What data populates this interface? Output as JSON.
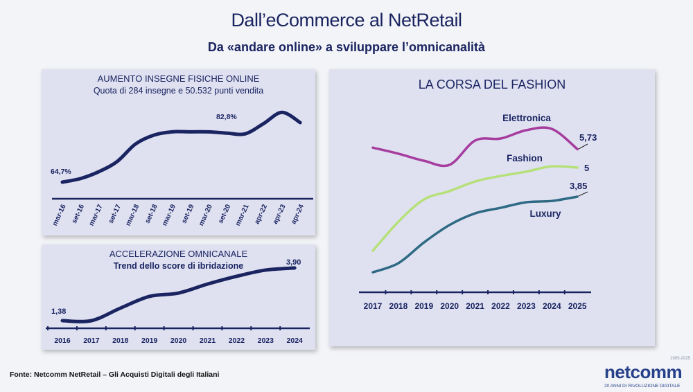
{
  "header": {
    "title": "Dall’eCommerce al NetRetail",
    "subtitle": "Da «andare online» a sviluppare l’omnicanalità"
  },
  "colors": {
    "navy": "#1a2460",
    "elettronica": "#a63d9e",
    "fashion": "#b6e07a",
    "luxury": "#2f6a84",
    "panel": "#dfe1f1"
  },
  "chart_data": [
    {
      "type": "line",
      "title": "AUMENTO INSEGNE FISICHE ONLINE",
      "subtitle": "Quota di 284 insegne e 50.532 punti vendita",
      "categories": [
        "mar-16",
        "set-16",
        "mar-17",
        "set-17",
        "mar-18",
        "set-18",
        "mar-19",
        "set-19",
        "mar-20",
        "set-20",
        "mar-21",
        "apr-22",
        "apr-23",
        "apr-24"
      ],
      "series": [
        {
          "values": [
            64.7,
            65.8,
            67.9,
            71.0,
            76.3,
            79.0,
            80.0,
            80.0,
            80.0,
            79.6,
            79.4,
            82.5,
            85.9,
            82.8
          ]
        }
      ],
      "data_labels": [
        "64,7%",
        "82,8%"
      ],
      "grid": false
    },
    {
      "type": "line",
      "title": "ACCELERAZIONE OMNICANALE",
      "subtitle": "Trend dello score di ibridazione",
      "categories": [
        "2016",
        "2017",
        "2018",
        "2019",
        "2020",
        "2021",
        "2022",
        "2023",
        "2024"
      ],
      "series": [
        {
          "values": [
            1.38,
            1.38,
            1.98,
            2.54,
            2.7,
            3.13,
            3.5,
            3.8,
            3.9
          ]
        }
      ],
      "data_labels": [
        "1,38",
        "3,90"
      ],
      "grid": false
    },
    {
      "type": "line",
      "title": "LA CORSA DEL FASHION",
      "categories": [
        "2017",
        "2018",
        "2019",
        "2020",
        "2021",
        "2022",
        "2023",
        "2024",
        "2025"
      ],
      "series": [
        {
          "name": "Elettronica",
          "color": "#a63d9e",
          "values": [
            5.79,
            5.55,
            5.27,
            5.11,
            6.07,
            6.15,
            6.48,
            6.53,
            5.73
          ],
          "end_label": "5,73"
        },
        {
          "name": "Fashion",
          "color": "#b6e07a",
          "values": [
            1.71,
            2.86,
            3.74,
            4.07,
            4.45,
            4.67,
            4.84,
            5.05,
            5.0
          ],
          "end_label": "5"
        },
        {
          "name": "Luxury",
          "color": "#2f6a84",
          "values": [
            0.86,
            1.22,
            2.04,
            2.73,
            3.19,
            3.41,
            3.63,
            3.68,
            3.85
          ],
          "end_label": "3,85"
        }
      ],
      "grid": false
    }
  ],
  "footer": {
    "source": "Fonte: Netcomm NetRetail – Gli Acquisti Digitali degli Italiani",
    "logo_text": "netcomm",
    "logo_years": "2005-2025",
    "logo_tagline": "20 ANNI DI RIVOLUZIONE DIGITALE"
  }
}
